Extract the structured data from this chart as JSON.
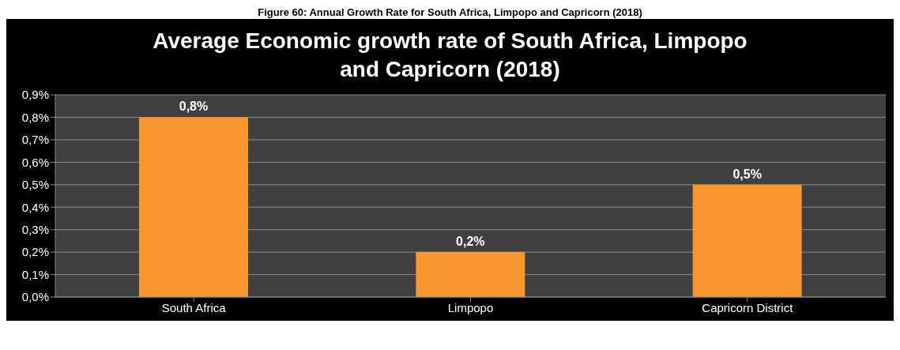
{
  "chart_data": {
    "type": "bar",
    "title": "Average Economic growth rate of South Africa, Limpopo and Capricorn (2018)",
    "annotations": [
      "Figure 60: Annual Growth Rate for South Africa, Limpopo and Capricorn (2018)"
    ],
    "categories": [
      "South Africa",
      "Limpopo",
      "Capricorn District"
    ],
    "values": [
      0.8,
      0.2,
      0.5
    ],
    "value_labels": [
      "0,8%",
      "0,2%",
      "0,5%"
    ],
    "color": "#f7962e",
    "ylim": [
      0,
      0.9
    ],
    "yticks": [
      {
        "value": 0,
        "label": "0,0%"
      },
      {
        "value": 0.1,
        "label": "0,1%"
      },
      {
        "value": 0.2,
        "label": "0,2%"
      },
      {
        "value": 0.3,
        "label": "0,3%"
      },
      {
        "value": 0.4,
        "label": "0,4%"
      },
      {
        "value": 0.5,
        "label": "0,5%"
      },
      {
        "value": 0.6,
        "label": "0,6%"
      },
      {
        "value": 0.7,
        "label": "0,7%"
      },
      {
        "value": 0.8,
        "label": "0,8%"
      },
      {
        "value": 0.9,
        "label": "0,9%"
      }
    ],
    "grid": "y",
    "legend": false
  }
}
